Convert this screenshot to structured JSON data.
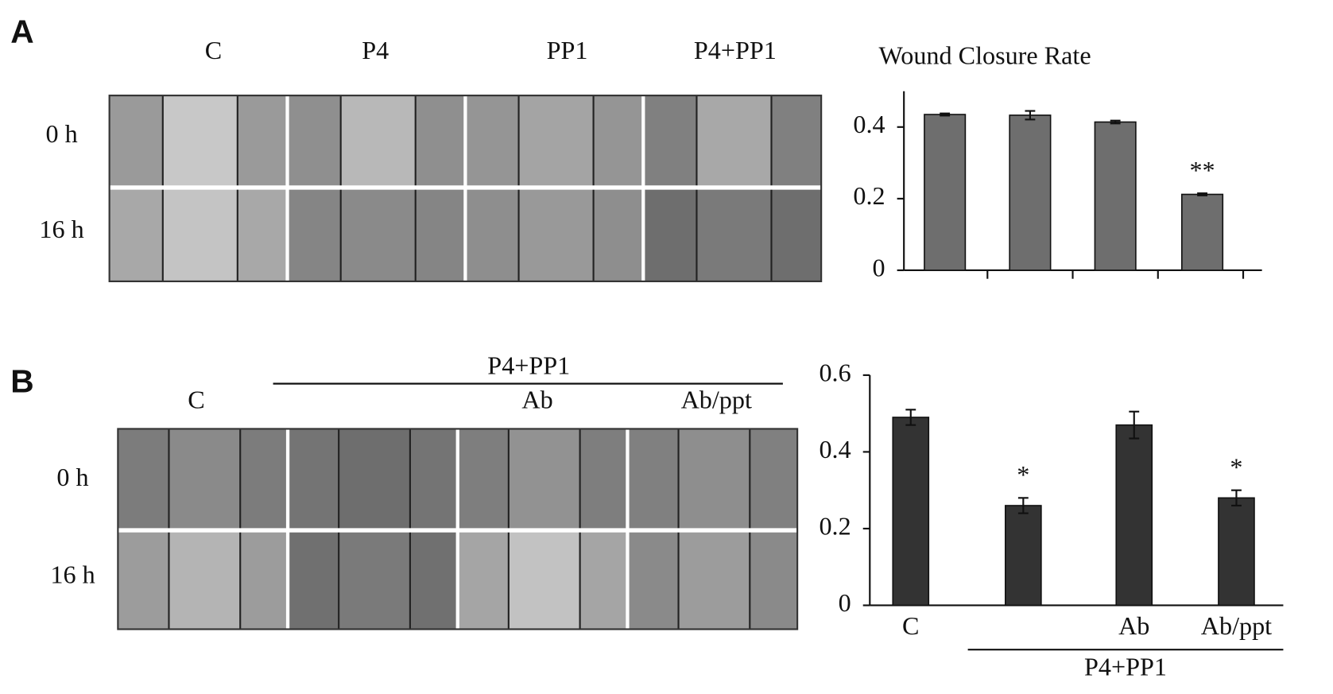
{
  "panels": [
    {
      "label": "A",
      "columns": [
        "C",
        "P4",
        "PP1",
        "P4+PP1"
      ],
      "rows": [
        "0 h",
        "16 h"
      ]
    },
    {
      "label": "B",
      "group_label": "P4+PP1",
      "columns": [
        "C",
        "Ab",
        "Ab/ppt"
      ],
      "rows": [
        "0 h",
        "16 h"
      ]
    }
  ],
  "chart_data": [
    {
      "type": "bar",
      "title": "Wound Closure Rate",
      "categories": [
        null,
        null,
        null,
        null
      ],
      "values": [
        0.435,
        0.433,
        0.414,
        0.212
      ],
      "errors": [
        0.003,
        0.012,
        0.004,
        0.003
      ],
      "annotations": [
        null,
        null,
        null,
        "**"
      ],
      "color": "#6e6e6e",
      "ylim": [
        0,
        0.5
      ],
      "yticks": [
        0,
        0.2,
        0.4
      ]
    },
    {
      "type": "bar",
      "categories": [
        "C",
        null,
        "Ab",
        "Ab/ppt"
      ],
      "group_label": "P4+PP1",
      "values": [
        0.49,
        0.26,
        0.47,
        0.28
      ],
      "errors": [
        0.02,
        0.02,
        0.035,
        0.02
      ],
      "annotations": [
        null,
        "*",
        null,
        "*"
      ],
      "color": "#333333",
      "ylim": [
        0,
        0.6
      ],
      "yticks": [
        0,
        0.2,
        0.4,
        0.6
      ]
    }
  ]
}
